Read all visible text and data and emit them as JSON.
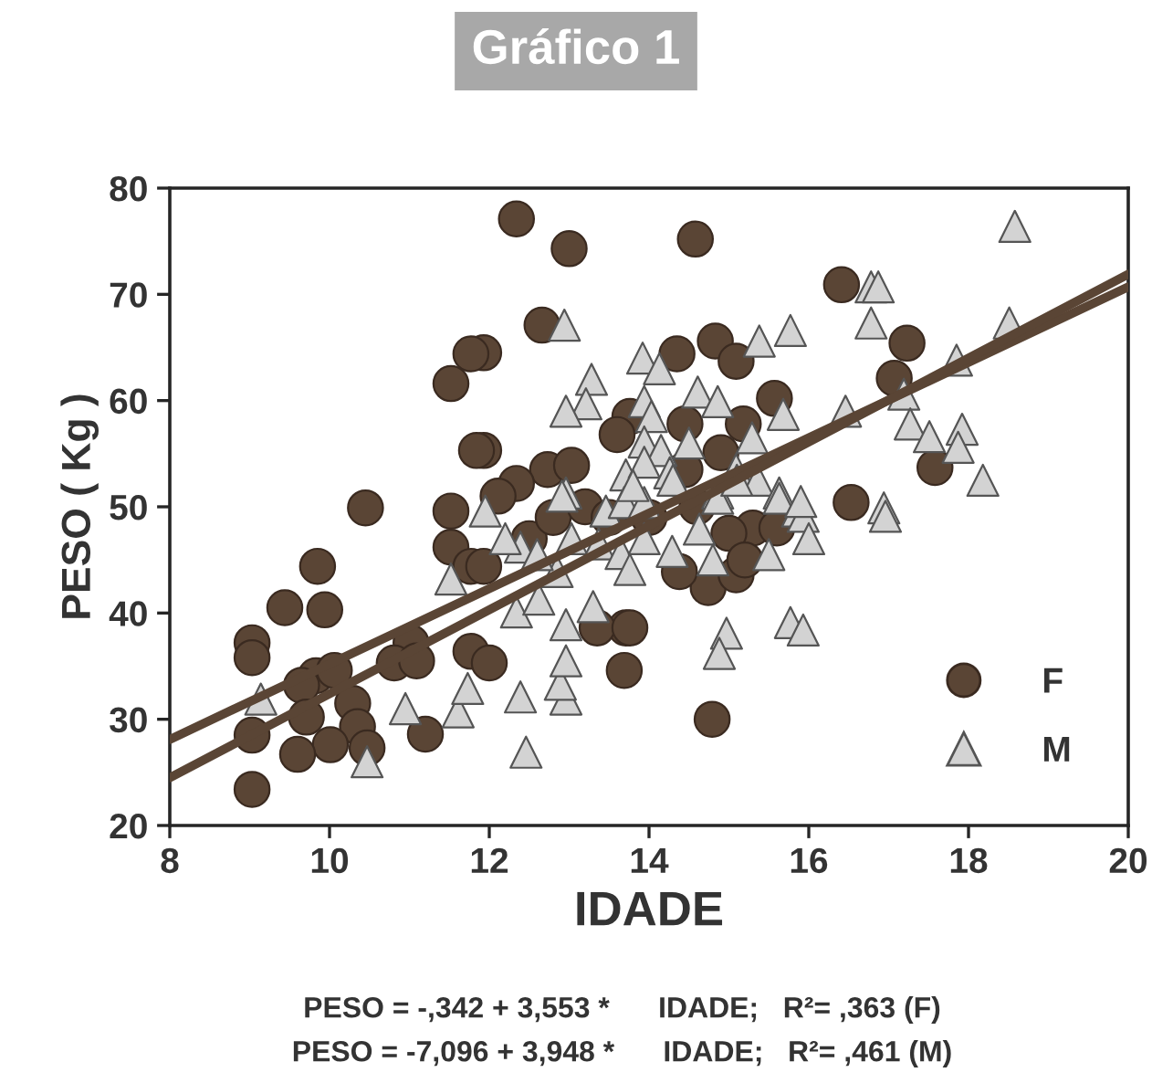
{
  "chart_data": {
    "type": "scatter",
    "title": "Gráfico 1",
    "xlabel": "IDADE",
    "ylabel": "PESO ( Kg )",
    "xlim": [
      8,
      20
    ],
    "ylim": [
      20,
      80
    ],
    "xticks": [
      8,
      10,
      12,
      14,
      16,
      18,
      20
    ],
    "yticks": [
      20,
      30,
      40,
      50,
      60,
      70,
      80
    ],
    "grid": false,
    "legend": "bottom right",
    "series": [
      {
        "name": "F",
        "marker": "circle",
        "color": "#5a4535",
        "x": [
          12.34,
          13.0,
          14.58,
          12.66,
          14.35,
          14.83,
          15.09,
          13.76,
          13.6,
          14.45,
          15.57,
          15.18,
          11.93,
          11.93,
          12.73,
          13.03,
          12.34,
          14.9,
          14.45,
          11.77,
          11.52,
          11.84,
          10.45,
          11.52,
          12.11,
          11.52,
          11.77,
          9.85,
          9.44,
          9.94,
          9.03,
          9.03,
          9.83,
          9.65,
          10.06,
          11.02,
          10.81,
          11.09,
          11.77,
          9.03,
          9.71,
          10.29,
          10.35,
          10.01,
          9.6,
          10.47,
          9.03,
          11.2,
          12.0,
          13.71,
          13.35,
          13.76,
          13.69,
          14.74,
          15.09,
          14.79,
          14.38,
          11.93,
          16.41,
          17.23,
          17.07,
          17.58,
          16.53,
          12.5,
          12.8,
          13.2,
          13.5,
          14.0,
          15.3,
          15.6,
          15.0,
          14.6,
          15.2
        ],
        "values": [
          77.1,
          74.3,
          75.2,
          67.1,
          64.4,
          65.6,
          63.7,
          58.5,
          56.8,
          57.8,
          60.2,
          57.8,
          64.5,
          55.3,
          53.5,
          53.9,
          52.2,
          55.1,
          53.5,
          64.4,
          61.6,
          55.3,
          49.9,
          49.6,
          51.0,
          46.2,
          44.4,
          44.4,
          40.5,
          40.3,
          37.2,
          35.8,
          34.1,
          33.2,
          34.6,
          37.2,
          35.3,
          35.5,
          36.4,
          28.5,
          30.2,
          31.5,
          29.3,
          27.6,
          26.7,
          27.3,
          23.4,
          28.6,
          35.3,
          38.6,
          38.6,
          38.6,
          34.6,
          42.4,
          43.6,
          30.0,
          43.9,
          44.4,
          70.9,
          65.4,
          62.1,
          53.7,
          50.4,
          47.0,
          49.0,
          50.0,
          49.0,
          49.0,
          48.0,
          48.0,
          47.5,
          50.0,
          45.0
        ]
      },
      {
        "name": "M",
        "marker": "triangle",
        "color": "#d3d3d3",
        "x": [
          12.94,
          13.92,
          14.13,
          15.38,
          15.77,
          13.28,
          13.21,
          12.96,
          13.94,
          14.03,
          14.61,
          14.86,
          15.68,
          15.29,
          13.94,
          14.15,
          13.71,
          13.94,
          14.26,
          15.09,
          15.36,
          12.96,
          14.86,
          15.63,
          11.52,
          11.95,
          9.14,
          10.47,
          10.95,
          11.61,
          11.73,
          14.97,
          14.88,
          15.77,
          12.46,
          12.39,
          12.96,
          12.89,
          12.96,
          12.34,
          12.96,
          13.3,
          12.85,
          12.62,
          12.39,
          13.03,
          13.37,
          13.65,
          13.76,
          13.94,
          14.29,
          14.63,
          12.91,
          13.46,
          13.69,
          13.94,
          14.86,
          15.63,
          15.86,
          18.58,
          16.78,
          16.87,
          16.78,
          18.51,
          17.85,
          17.19,
          16.46,
          17.27,
          17.51,
          17.92,
          17.87,
          18.18,
          16.94,
          16.96,
          15.93,
          15.93,
          14.3,
          14.8,
          15.5,
          15.9,
          16.0,
          13.8,
          14.5,
          15.1,
          12.6,
          12.2
        ],
        "values": [
          67.1,
          64.0,
          63.0,
          65.6,
          66.6,
          62.0,
          59.7,
          59.0,
          59.9,
          58.5,
          60.8,
          59.9,
          58.7,
          56.5,
          56.1,
          55.3,
          53.0,
          54.2,
          53.2,
          53.5,
          52.5,
          51.3,
          51.3,
          51.3,
          43.2,
          49.6,
          31.9,
          26.0,
          31.0,
          30.7,
          32.9,
          38.1,
          36.2,
          39.1,
          26.9,
          32.1,
          31.9,
          33.3,
          35.5,
          40.1,
          38.9,
          40.6,
          43.9,
          41.3,
          46.2,
          47.0,
          46.5,
          45.6,
          44.1,
          47.0,
          45.8,
          47.9,
          51.0,
          49.6,
          50.4,
          50.4,
          50.8,
          50.8,
          49.6,
          76.4,
          70.7,
          70.7,
          67.3,
          67.3,
          63.8,
          60.6,
          59.0,
          57.8,
          56.6,
          57.3,
          55.6,
          52.5,
          49.9,
          49.1,
          49.1,
          38.4,
          52.5,
          45.0,
          45.5,
          50.5,
          47.0,
          52.0,
          56.0,
          52.5,
          45.5,
          47.0
        ]
      },
      {
        "type": "line",
        "color": "#5a4535",
        "x": [
          8,
          20
        ],
        "values": [
          28.1,
          70.7
        ]
      },
      {
        "type": "line",
        "color": "#5a4535",
        "x": [
          8,
          20
        ],
        "values": [
          24.5,
          71.9
        ]
      }
    ],
    "annotations": [
      "PESO = -,342 + 3,553 *      IDADE;   R²= ,363 (F)",
      "PESO = -7,096 + 3,948 *      IDADE;   R²= ,461 (M)"
    ]
  }
}
